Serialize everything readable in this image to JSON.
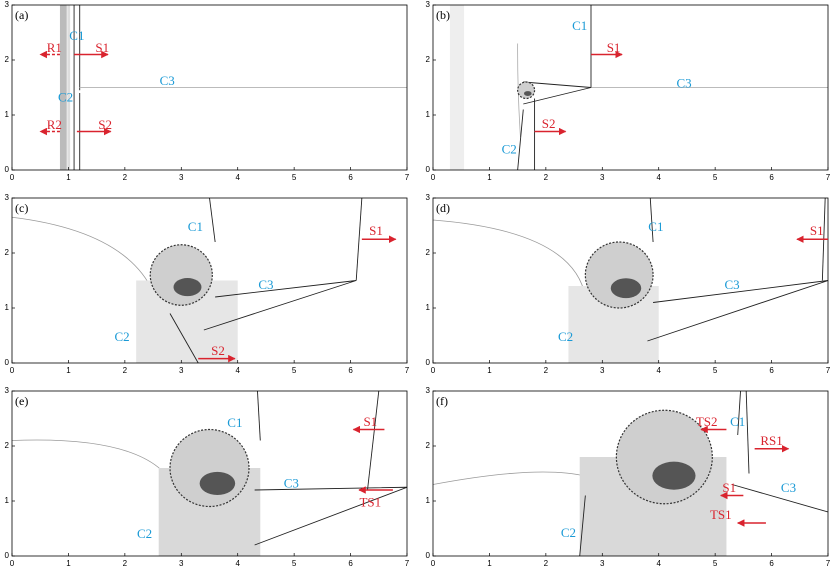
{
  "figure": {
    "xlim": [
      0,
      7
    ],
    "ylim": [
      0,
      3
    ],
    "xticks": [
      0,
      1,
      2,
      3,
      4,
      5,
      6,
      7
    ],
    "yticks": [
      0,
      1,
      2,
      3
    ],
    "colors": {
      "red": "#d9232e",
      "cyan": "#1a9ad6"
    },
    "panels": [
      {
        "label": "(a)",
        "annotations": [
          {
            "text": "R1",
            "color": "red"
          },
          {
            "text": "C1",
            "color": "cyan"
          },
          {
            "text": "S1",
            "color": "red"
          },
          {
            "text": "C3",
            "color": "cyan"
          },
          {
            "text": "C2",
            "color": "cyan"
          },
          {
            "text": "R2",
            "color": "red"
          },
          {
            "text": "S2",
            "color": "red"
          }
        ]
      },
      {
        "label": "(b)",
        "annotations": [
          {
            "text": "C1",
            "color": "cyan"
          },
          {
            "text": "S1",
            "color": "red"
          },
          {
            "text": "C3",
            "color": "cyan"
          },
          {
            "text": "C2",
            "color": "cyan"
          },
          {
            "text": "S2",
            "color": "red"
          }
        ]
      },
      {
        "label": "(c)",
        "annotations": [
          {
            "text": "C1",
            "color": "cyan"
          },
          {
            "text": "S1",
            "color": "red"
          },
          {
            "text": "C3",
            "color": "cyan"
          },
          {
            "text": "C2",
            "color": "cyan"
          },
          {
            "text": "S2",
            "color": "red"
          }
        ]
      },
      {
        "label": "(d)",
        "annotations": [
          {
            "text": "C1",
            "color": "cyan"
          },
          {
            "text": "S1",
            "color": "red"
          },
          {
            "text": "C3",
            "color": "cyan"
          },
          {
            "text": "C2",
            "color": "cyan"
          }
        ]
      },
      {
        "label": "(e)",
        "annotations": [
          {
            "text": "C1",
            "color": "cyan"
          },
          {
            "text": "S1",
            "color": "red"
          },
          {
            "text": "C3",
            "color": "cyan"
          },
          {
            "text": "TS1",
            "color": "red"
          },
          {
            "text": "C2",
            "color": "cyan"
          }
        ]
      },
      {
        "label": "(f)",
        "annotations": [
          {
            "text": "TS2",
            "color": "red"
          },
          {
            "text": "C1",
            "color": "cyan"
          },
          {
            "text": "RS1",
            "color": "red"
          },
          {
            "text": "S1",
            "color": "red"
          },
          {
            "text": "C3",
            "color": "cyan"
          },
          {
            "text": "TS1",
            "color": "red"
          },
          {
            "text": "C2",
            "color": "cyan"
          }
        ]
      }
    ]
  }
}
